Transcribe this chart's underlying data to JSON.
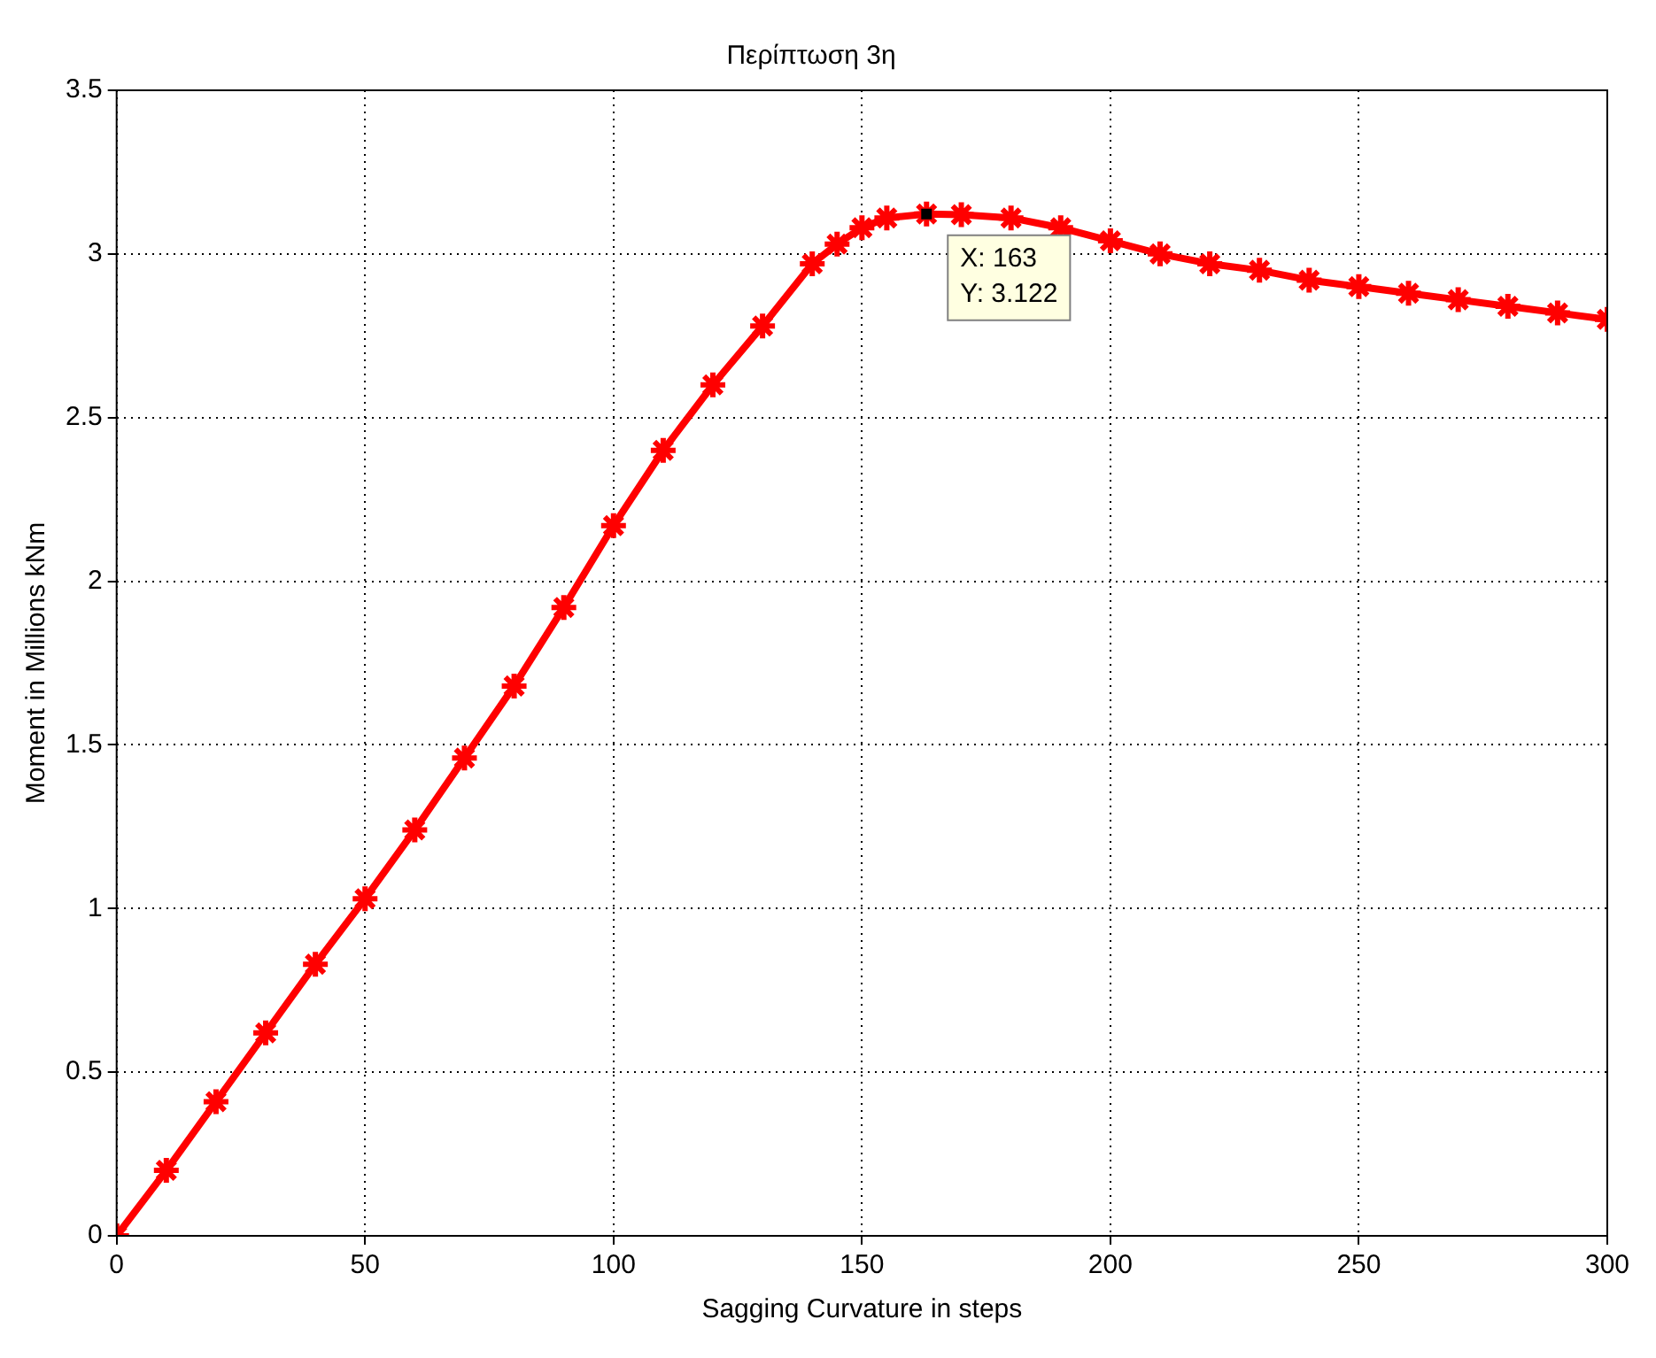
{
  "chart_data": {
    "type": "line",
    "title": "Περίπτωση 3η",
    "xlabel": "Sagging Curvature in steps",
    "ylabel": "Moment in Millions kNm",
    "x": [
      0,
      10,
      20,
      30,
      40,
      50,
      60,
      70,
      80,
      90,
      100,
      110,
      120,
      130,
      140,
      145,
      150,
      155,
      163,
      170,
      180,
      190,
      200,
      210,
      220,
      230,
      240,
      250,
      260,
      270,
      280,
      290,
      300
    ],
    "series": [
      {
        "color": "#ff0000",
        "values": [
          0,
          0.2,
          0.41,
          0.62,
          0.83,
          1.03,
          1.24,
          1.46,
          1.68,
          1.92,
          2.17,
          2.4,
          2.6,
          2.78,
          2.97,
          3.03,
          3.08,
          3.11,
          3.122,
          3.12,
          3.11,
          3.08,
          3.04,
          3.0,
          2.97,
          2.95,
          2.92,
          2.9,
          2.88,
          2.86,
          2.84,
          2.82,
          2.8
        ]
      }
    ],
    "xlim": [
      0,
      300
    ],
    "xticks": [
      0,
      50,
      100,
      150,
      200,
      250,
      300
    ],
    "ylim": [
      0,
      3.5
    ],
    "yticks": [
      0,
      0.5,
      1,
      1.5,
      2,
      2.5,
      3,
      3.5
    ],
    "grid": true,
    "marker": "cross",
    "line_style": "solid",
    "annotations": [
      {
        "text": "X: 163\nY: 3.122",
        "x": 163,
        "y": 3.122
      }
    ]
  }
}
